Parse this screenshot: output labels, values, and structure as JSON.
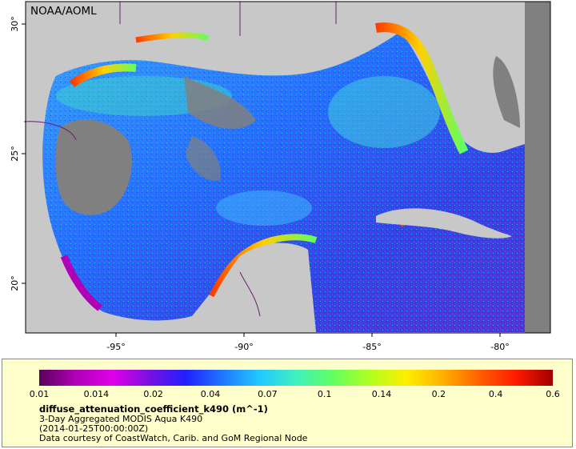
{
  "map": {
    "attribution": "NOAA/AOML",
    "lon_labels": [
      "-95°",
      "-90°",
      "-85°",
      "-80°"
    ],
    "lat_labels": [
      "30°",
      "25°",
      "20°"
    ],
    "colors": {
      "land": "#c8c8c8",
      "no_data": "#808080",
      "frame": "#000000"
    }
  },
  "legend": {
    "ticks": [
      "0.01",
      "0.014",
      "0.02",
      "0.04",
      "0.07",
      "0.1",
      "0.14",
      "0.2",
      "0.4",
      "0.6"
    ],
    "variable": "diffuse_attenuation_coefficient_k490 (m^-1)",
    "product": "3-Day Aggregated MODIS Aqua K490",
    "time": "(2014-01-25T00:00:00Z)",
    "credit": "Data courtesy of CoastWatch, Carib. and GoM Regional Node",
    "colormap": [
      "#5a005a",
      "#b000b8",
      "#e000e8",
      "#7a10e0",
      "#2020ff",
      "#1e78ff",
      "#20c8ff",
      "#40f0c0",
      "#60ff60",
      "#b0ff20",
      "#ffee00",
      "#ffb000",
      "#ff6000",
      "#ff1a00",
      "#a00000"
    ]
  }
}
